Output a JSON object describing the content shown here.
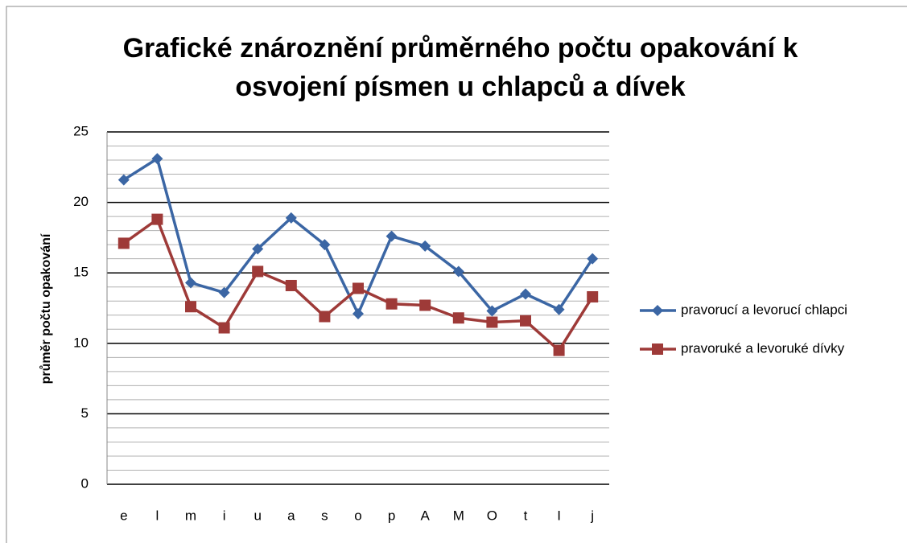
{
  "chart_data": {
    "type": "line",
    "title": "Grafické znároznění průměrného počtu opakování k osvojení písmen u chlapců a dívek",
    "y_label": "průměr počtu opakování",
    "categories": [
      "e",
      "l",
      "m",
      "i",
      "u",
      "a",
      "s",
      "o",
      "p",
      "A",
      "M",
      "O",
      "t",
      "I",
      "j"
    ],
    "series": [
      {
        "name": "pravorucí a levorucí chlapci",
        "color": "#3b66a4",
        "marker": "diamond",
        "values": [
          21.6,
          23.1,
          14.3,
          13.6,
          16.7,
          18.9,
          17.0,
          12.1,
          17.6,
          16.9,
          15.1,
          12.3,
          13.5,
          12.4,
          16.0
        ]
      },
      {
        "name": "pravoruké a levoruké dívky",
        "color": "#9e3a38",
        "marker": "square",
        "values": [
          17.1,
          18.8,
          12.6,
          11.1,
          15.1,
          14.1,
          11.9,
          13.9,
          12.8,
          12.7,
          11.8,
          11.5,
          11.6,
          9.5,
          13.3
        ]
      }
    ],
    "ylim": [
      0,
      25
    ],
    "yticks": [
      0,
      5,
      10,
      15,
      20,
      25
    ],
    "grid": true,
    "legend": "right"
  }
}
